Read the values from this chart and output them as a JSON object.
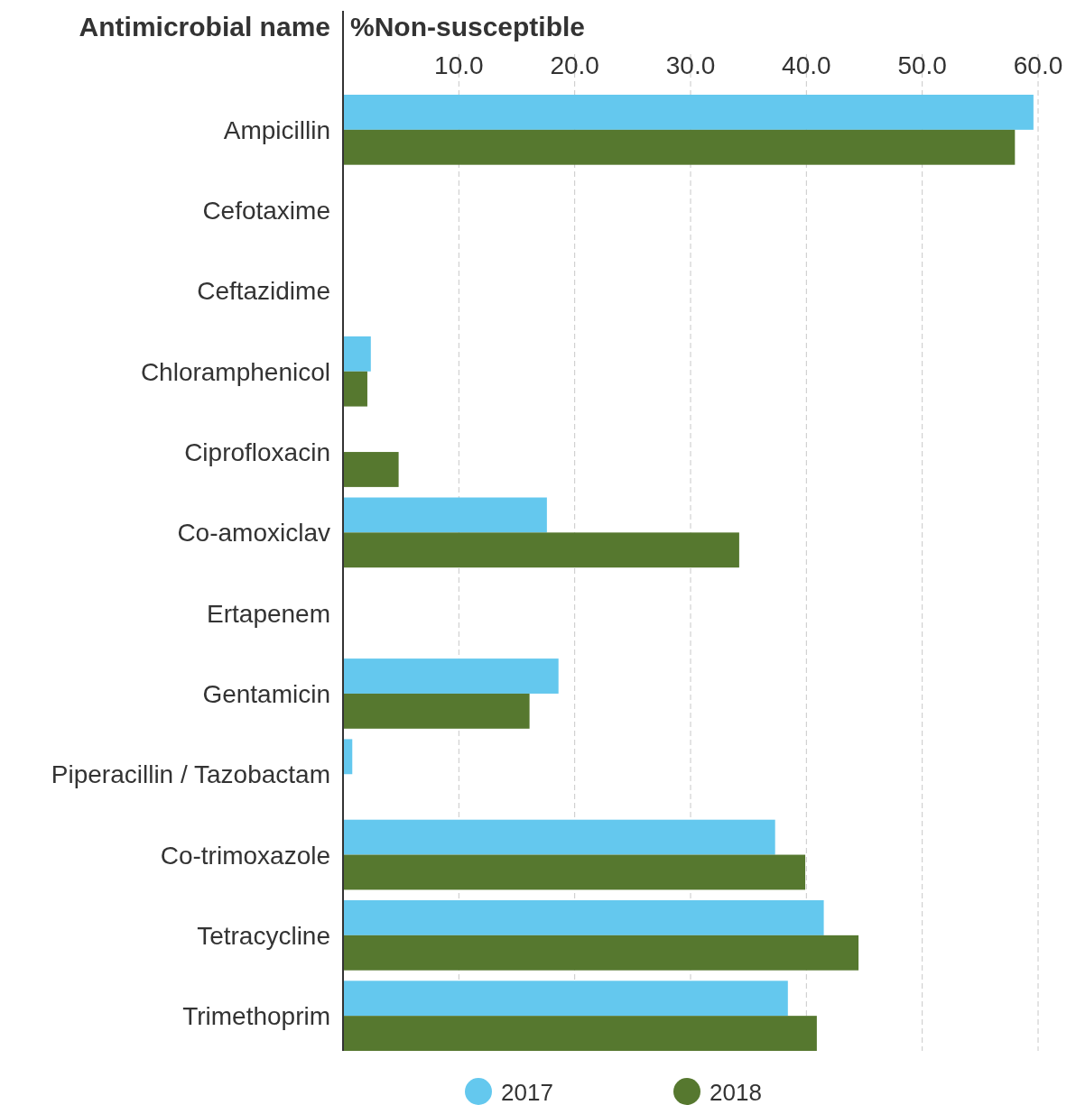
{
  "chart_data": {
    "type": "bar",
    "orientation": "horizontal",
    "ylabel": "Antimicrobial name",
    "xlabel": "%Non-susceptible",
    "categories": [
      "Ampicillin",
      "Cefotaxime",
      "Ceftazidime",
      "Chloramphenicol",
      "Ciprofloxacin",
      "Co-amoxiclav",
      "Ertapenem",
      "Gentamicin",
      "Piperacillin / Tazobactam",
      "Co-trimoxazole",
      "Tetracycline",
      "Trimethoprim"
    ],
    "series": [
      {
        "name": "2017",
        "color": "#64c8ee",
        "values": [
          59.6,
          0,
          0,
          2.4,
          0,
          17.6,
          0,
          18.6,
          0.8,
          37.3,
          41.5,
          38.4
        ]
      },
      {
        "name": "2018",
        "color": "#56782f",
        "values": [
          58.0,
          0,
          0,
          2.1,
          4.8,
          34.2,
          0,
          16.1,
          0,
          39.9,
          44.5,
          40.9
        ]
      }
    ],
    "xlim": [
      0,
      60
    ],
    "xticks": [
      {
        "value": 10,
        "label": "10.0"
      },
      {
        "value": 20,
        "label": "20.0"
      },
      {
        "value": 30,
        "label": "30.0"
      },
      {
        "value": 40,
        "label": "40.0"
      },
      {
        "value": 50,
        "label": "50.0"
      },
      {
        "value": 60,
        "label": "60.0"
      }
    ],
    "grid": "x",
    "legend": "bottom"
  }
}
